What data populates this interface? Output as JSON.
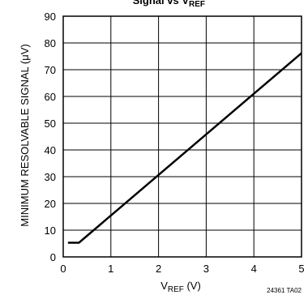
{
  "chart_data": {
    "type": "line",
    "title_fragment": "Signal vs V",
    "title_subscript": "REF",
    "xlabel": "V",
    "xlabel_subscript": "REF",
    "xlabel_unit": " (V)",
    "ylabel": "MINIMUM RESOLVABLE SIGNAL (μV)",
    "xlim": [
      0,
      5
    ],
    "ylim": [
      0,
      90
    ],
    "xticks": [
      0,
      1,
      2,
      3,
      4,
      5
    ],
    "yticks": [
      0,
      10,
      20,
      30,
      40,
      50,
      60,
      70,
      80,
      90
    ],
    "grid": true,
    "series": [
      {
        "x": [
          0.1,
          0.33,
          5.0
        ],
        "y": [
          5.3,
          5.3,
          76.2
        ],
        "color": "#000000"
      }
    ],
    "figure_id": "24361 TA02"
  }
}
